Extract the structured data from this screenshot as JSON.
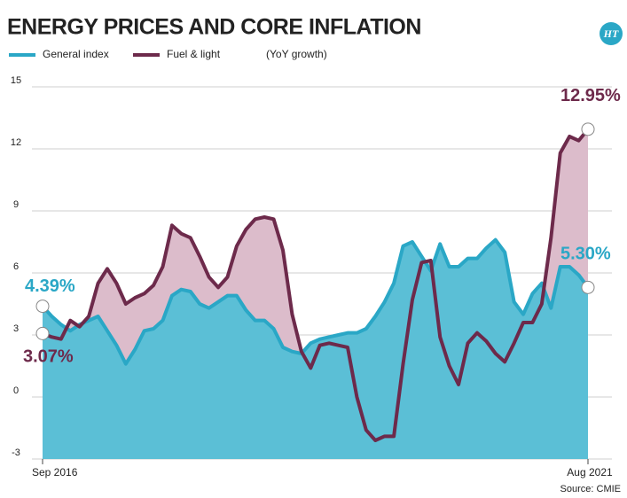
{
  "chart_data": {
    "type": "line",
    "title": "ENERGY PRICES AND CORE INFLATION",
    "subtitle": "(YoY growth)",
    "logo": "HT",
    "source": "Source: CMIE",
    "categories": [
      "Sep 2016",
      null,
      null,
      null,
      null,
      null,
      null,
      null,
      null,
      null,
      null,
      null,
      null,
      null,
      null,
      null,
      null,
      null,
      null,
      null,
      null,
      null,
      null,
      null,
      null,
      null,
      null,
      null,
      null,
      null,
      null,
      null,
      null,
      null,
      null,
      null,
      null,
      null,
      null,
      null,
      null,
      null,
      null,
      null,
      null,
      null,
      null,
      null,
      null,
      null,
      null,
      null,
      null,
      null,
      null,
      null,
      null,
      null,
      null,
      "Aug 2021"
    ],
    "series": [
      {
        "name": "General index",
        "color": "#2aa7c6",
        "fill": "#5bbfd6",
        "values": [
          4.39,
          3.9,
          3.5,
          3.2,
          3.5,
          3.7,
          3.9,
          3.2,
          2.5,
          1.6,
          2.3,
          3.2,
          3.3,
          3.7,
          4.9,
          5.2,
          5.1,
          4.5,
          4.3,
          4.6,
          4.9,
          4.9,
          4.2,
          3.7,
          3.7,
          3.3,
          2.4,
          2.2,
          2.1,
          2.6,
          2.8,
          2.9,
          3.0,
          3.1,
          3.1,
          3.3,
          3.9,
          4.6,
          5.5,
          7.3,
          7.5,
          6.8,
          6.1,
          7.4,
          6.3,
          6.3,
          6.7,
          6.7,
          7.2,
          7.6,
          7.0,
          4.6,
          4.0,
          5.0,
          5.5,
          4.3,
          6.3,
          6.3,
          5.9,
          5.3
        ],
        "value_labels": [
          "4.39%",
          null,
          null,
          null,
          null,
          null,
          null,
          null,
          null,
          null,
          null,
          null,
          null,
          null,
          null,
          null,
          null,
          null,
          null,
          null,
          null,
          null,
          null,
          null,
          null,
          null,
          null,
          null,
          null,
          null,
          null,
          null,
          null,
          null,
          null,
          null,
          null,
          null,
          null,
          null,
          null,
          null,
          null,
          null,
          null,
          null,
          null,
          null,
          null,
          null,
          null,
          null,
          null,
          null,
          null,
          null,
          null,
          null,
          null,
          "5.30%"
        ]
      },
      {
        "name": "Fuel & light",
        "color": "#6d2a4b",
        "fill": "#dcbccb",
        "values": [
          3.07,
          2.9,
          2.8,
          3.7,
          3.4,
          3.9,
          5.5,
          6.2,
          5.5,
          4.5,
          4.8,
          5.0,
          5.4,
          6.3,
          8.3,
          7.9,
          7.7,
          6.8,
          5.8,
          5.3,
          5.8,
          7.3,
          8.1,
          8.6,
          8.7,
          8.6,
          7.1,
          4.0,
          2.2,
          1.4,
          2.5,
          2.6,
          2.5,
          2.4,
          0.0,
          -1.6,
          -2.1,
          -1.9,
          -1.9,
          1.6,
          4.7,
          6.5,
          6.6,
          2.9,
          1.5,
          0.6,
          2.6,
          3.1,
          2.7,
          2.1,
          1.7,
          2.6,
          3.6,
          3.6,
          4.5,
          7.7,
          11.8,
          12.6,
          12.4,
          12.95
        ],
        "value_labels": [
          "3.07%",
          null,
          null,
          null,
          null,
          null,
          null,
          null,
          null,
          null,
          null,
          null,
          null,
          null,
          null,
          null,
          null,
          null,
          null,
          null,
          null,
          null,
          null,
          null,
          null,
          null,
          null,
          null,
          null,
          null,
          null,
          null,
          null,
          null,
          null,
          null,
          null,
          null,
          null,
          null,
          null,
          null,
          null,
          null,
          null,
          null,
          null,
          null,
          null,
          null,
          null,
          null,
          null,
          null,
          null,
          null,
          null,
          null,
          null,
          "12.95%"
        ]
      }
    ],
    "ylim": [
      -3,
      15
    ],
    "yticks": [
      -3,
      0,
      3,
      6,
      9,
      12,
      15
    ],
    "grid": true
  }
}
